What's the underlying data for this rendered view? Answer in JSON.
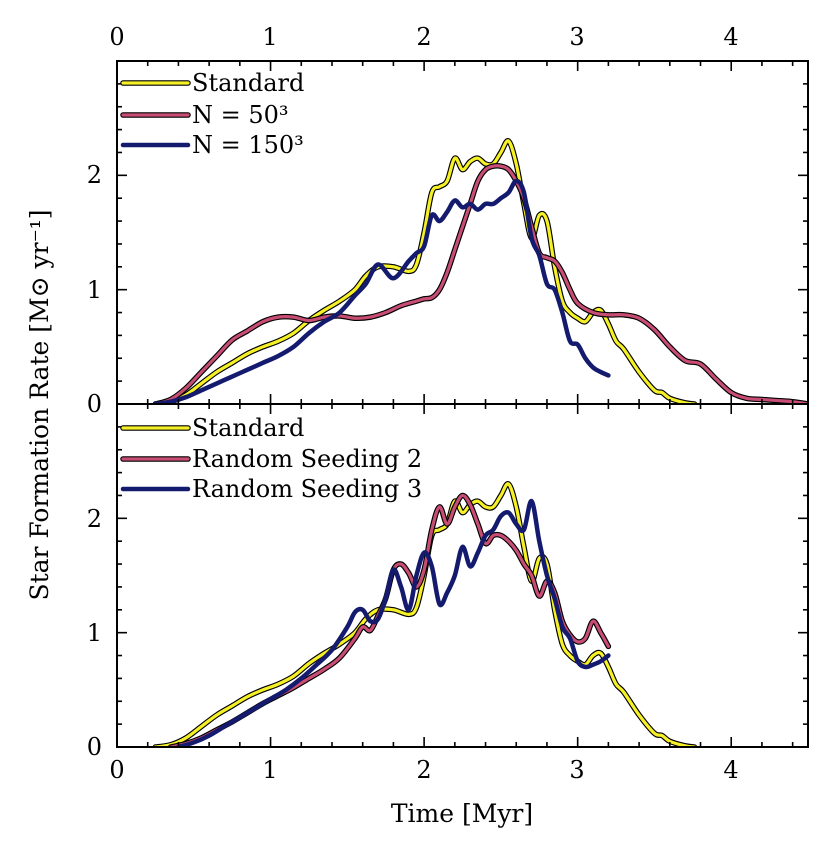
{
  "figure": {
    "shared_x_label": "Time [Myr]",
    "shared_y_label": "Star Formation Rate [M⊙ yr⁻¹]",
    "colors": {
      "standard": "#f5f126",
      "variant_a": "#c84d74",
      "variant_b": "#141a6e"
    }
  },
  "chart_data": [
    {
      "type": "line",
      "panel": "top",
      "title": "",
      "xlabel": "Time [Myr]",
      "ylabel": "Star Formation Rate [M⊙ yr⁻¹]",
      "xlim": [
        0,
        4.5
      ],
      "ylim": [
        0,
        3.0
      ],
      "xticks": [
        0,
        1,
        2,
        3,
        4
      ],
      "xtick_labels_top": [
        "0",
        "1",
        "2",
        "3",
        "4"
      ],
      "yticks": [
        0,
        1,
        2
      ],
      "ytick_labels": [
        "0",
        "1",
        "2"
      ],
      "grid": false,
      "legend_position": "top-left",
      "series": [
        {
          "name": "Standard",
          "color": "#f5f126",
          "outline": true,
          "x": [
            0.25,
            0.35,
            0.45,
            0.55,
            0.65,
            0.75,
            0.85,
            0.95,
            1.05,
            1.15,
            1.25,
            1.35,
            1.45,
            1.55,
            1.62,
            1.7,
            1.8,
            1.9,
            1.95,
            2.0,
            2.05,
            2.1,
            2.15,
            2.2,
            2.25,
            2.3,
            2.35,
            2.4,
            2.45,
            2.5,
            2.55,
            2.6,
            2.65,
            2.7,
            2.75,
            2.8,
            2.85,
            2.9,
            2.95,
            3.0,
            3.05,
            3.1,
            3.15,
            3.2,
            3.25,
            3.3,
            3.4,
            3.5,
            3.55,
            3.6,
            3.7,
            3.76
          ],
          "y": [
            0.0,
            0.02,
            0.08,
            0.18,
            0.28,
            0.36,
            0.44,
            0.5,
            0.55,
            0.62,
            0.73,
            0.82,
            0.9,
            1.0,
            1.12,
            1.2,
            1.2,
            1.16,
            1.22,
            1.5,
            1.85,
            1.9,
            1.95,
            2.15,
            2.05,
            2.12,
            2.15,
            2.1,
            2.1,
            2.2,
            2.3,
            2.1,
            1.75,
            1.45,
            1.65,
            1.6,
            1.2,
            0.9,
            0.8,
            0.75,
            0.72,
            0.8,
            0.82,
            0.7,
            0.55,
            0.48,
            0.28,
            0.12,
            0.1,
            0.05,
            0.01,
            0.0
          ]
        },
        {
          "name": "N = 50³",
          "color": "#c84d74",
          "outline": true,
          "x": [
            0.25,
            0.35,
            0.45,
            0.55,
            0.65,
            0.75,
            0.85,
            0.95,
            1.05,
            1.15,
            1.25,
            1.35,
            1.45,
            1.55,
            1.65,
            1.75,
            1.85,
            1.95,
            2.0,
            2.05,
            2.1,
            2.15,
            2.2,
            2.25,
            2.3,
            2.35,
            2.4,
            2.45,
            2.5,
            2.55,
            2.6,
            2.65,
            2.7,
            2.75,
            2.8,
            2.85,
            2.9,
            2.95,
            3.0,
            3.1,
            3.2,
            3.3,
            3.4,
            3.5,
            3.6,
            3.7,
            3.8,
            3.9,
            4.0,
            4.1,
            4.2,
            4.3,
            4.4,
            4.5
          ],
          "y": [
            0.0,
            0.04,
            0.14,
            0.28,
            0.42,
            0.56,
            0.64,
            0.72,
            0.76,
            0.76,
            0.73,
            0.76,
            0.77,
            0.75,
            0.76,
            0.8,
            0.86,
            0.9,
            0.92,
            0.93,
            1.0,
            1.15,
            1.35,
            1.55,
            1.75,
            1.95,
            2.05,
            2.08,
            2.08,
            2.05,
            1.95,
            1.8,
            1.55,
            1.32,
            1.28,
            1.25,
            1.15,
            1.0,
            0.88,
            0.8,
            0.78,
            0.78,
            0.75,
            0.65,
            0.5,
            0.38,
            0.35,
            0.22,
            0.1,
            0.05,
            0.04,
            0.03,
            0.02,
            0.0
          ]
        },
        {
          "name": "N = 150³",
          "color": "#141a6e",
          "outline": false,
          "x": [
            0.25,
            0.35,
            0.45,
            0.55,
            0.65,
            0.75,
            0.85,
            0.95,
            1.05,
            1.15,
            1.25,
            1.35,
            1.45,
            1.55,
            1.62,
            1.7,
            1.8,
            1.9,
            1.95,
            2.0,
            2.05,
            2.1,
            2.15,
            2.2,
            2.25,
            2.3,
            2.35,
            2.4,
            2.45,
            2.5,
            2.55,
            2.6,
            2.65,
            2.7,
            2.75,
            2.8,
            2.85,
            2.9,
            2.95,
            3.0,
            3.05,
            3.1,
            3.15,
            3.2
          ],
          "y": [
            0.0,
            0.02,
            0.06,
            0.12,
            0.18,
            0.24,
            0.3,
            0.36,
            0.42,
            0.5,
            0.62,
            0.72,
            0.8,
            0.95,
            1.05,
            1.22,
            1.1,
            1.25,
            1.32,
            1.38,
            1.65,
            1.6,
            1.68,
            1.78,
            1.72,
            1.75,
            1.7,
            1.75,
            1.75,
            1.8,
            1.85,
            1.95,
            1.85,
            1.45,
            1.3,
            1.05,
            1.0,
            0.8,
            0.55,
            0.52,
            0.4,
            0.32,
            0.28,
            0.25
          ]
        }
      ]
    },
    {
      "type": "line",
      "panel": "bottom",
      "title": "",
      "xlabel": "Time [Myr]",
      "ylabel": "Star Formation Rate [M⊙ yr⁻¹]",
      "xlim": [
        0,
        4.5
      ],
      "ylim": [
        0,
        3.0
      ],
      "xticks": [
        0,
        1,
        2,
        3,
        4
      ],
      "xtick_labels": [
        "0",
        "1",
        "2",
        "3",
        "4"
      ],
      "yticks": [
        0,
        1,
        2
      ],
      "ytick_labels": [
        "0",
        "1",
        "2"
      ],
      "grid": false,
      "legend_position": "top-left",
      "series": [
        {
          "name": "Standard",
          "color": "#f5f126",
          "outline": true,
          "x": [
            0.25,
            0.35,
            0.45,
            0.55,
            0.65,
            0.75,
            0.85,
            0.95,
            1.05,
            1.15,
            1.25,
            1.35,
            1.45,
            1.55,
            1.62,
            1.7,
            1.8,
            1.9,
            1.95,
            2.0,
            2.05,
            2.1,
            2.15,
            2.2,
            2.25,
            2.3,
            2.35,
            2.4,
            2.45,
            2.5,
            2.55,
            2.6,
            2.65,
            2.7,
            2.75,
            2.8,
            2.85,
            2.9,
            2.95,
            3.0,
            3.05,
            3.1,
            3.15,
            3.2,
            3.25,
            3.3,
            3.4,
            3.5,
            3.55,
            3.6,
            3.7,
            3.76
          ],
          "y": [
            0.0,
            0.02,
            0.08,
            0.18,
            0.28,
            0.36,
            0.44,
            0.5,
            0.55,
            0.62,
            0.73,
            0.82,
            0.9,
            1.0,
            1.12,
            1.2,
            1.2,
            1.16,
            1.22,
            1.5,
            1.85,
            1.9,
            1.95,
            2.15,
            2.05,
            2.12,
            2.15,
            2.1,
            2.1,
            2.2,
            2.3,
            2.1,
            1.75,
            1.45,
            1.65,
            1.6,
            1.2,
            0.9,
            0.8,
            0.75,
            0.72,
            0.8,
            0.82,
            0.7,
            0.55,
            0.48,
            0.28,
            0.12,
            0.1,
            0.05,
            0.01,
            0.0
          ]
        },
        {
          "name": "Random Seeding 2",
          "color": "#c84d74",
          "outline": true,
          "x": [
            0.35,
            0.45,
            0.55,
            0.65,
            0.75,
            0.85,
            0.95,
            1.05,
            1.15,
            1.25,
            1.35,
            1.45,
            1.55,
            1.6,
            1.65,
            1.7,
            1.75,
            1.8,
            1.85,
            1.9,
            1.95,
            2.0,
            2.05,
            2.1,
            2.15,
            2.2,
            2.25,
            2.3,
            2.35,
            2.4,
            2.45,
            2.5,
            2.55,
            2.6,
            2.65,
            2.7,
            2.75,
            2.8,
            2.85,
            2.9,
            2.95,
            3.0,
            3.05,
            3.1,
            3.15,
            3.2
          ],
          "y": [
            0.0,
            0.03,
            0.08,
            0.15,
            0.22,
            0.3,
            0.38,
            0.45,
            0.52,
            0.6,
            0.68,
            0.78,
            0.95,
            1.05,
            1.02,
            1.15,
            1.3,
            1.55,
            1.6,
            1.52,
            1.4,
            1.55,
            1.9,
            2.1,
            1.95,
            2.1,
            2.2,
            2.12,
            1.95,
            1.78,
            1.85,
            1.85,
            1.8,
            1.72,
            1.6,
            1.5,
            1.32,
            1.45,
            1.35,
            1.1,
            0.98,
            0.92,
            0.95,
            1.1,
            1.0,
            0.88
          ]
        },
        {
          "name": "Random Seeding 3",
          "color": "#141a6e",
          "outline": false,
          "x": [
            0.4,
            0.5,
            0.6,
            0.7,
            0.8,
            0.9,
            1.0,
            1.1,
            1.2,
            1.3,
            1.4,
            1.5,
            1.55,
            1.6,
            1.65,
            1.7,
            1.75,
            1.8,
            1.85,
            1.9,
            1.95,
            2.0,
            2.05,
            2.1,
            2.15,
            2.2,
            2.25,
            2.3,
            2.35,
            2.4,
            2.45,
            2.5,
            2.55,
            2.6,
            2.65,
            2.7,
            2.75,
            2.8,
            2.85,
            2.9,
            2.95,
            3.0,
            3.05,
            3.1,
            3.15,
            3.2
          ],
          "y": [
            0.0,
            0.04,
            0.1,
            0.18,
            0.26,
            0.34,
            0.42,
            0.5,
            0.6,
            0.72,
            0.85,
            1.05,
            1.18,
            1.2,
            1.1,
            1.12,
            1.3,
            1.55,
            1.4,
            1.2,
            1.5,
            1.7,
            1.58,
            1.25,
            1.35,
            1.5,
            1.75,
            1.58,
            1.7,
            1.85,
            1.9,
            2.02,
            2.05,
            1.95,
            1.9,
            2.15,
            1.8,
            1.5,
            1.3,
            1.05,
            0.95,
            0.75,
            0.7,
            0.72,
            0.75,
            0.8
          ]
        }
      ]
    }
  ]
}
